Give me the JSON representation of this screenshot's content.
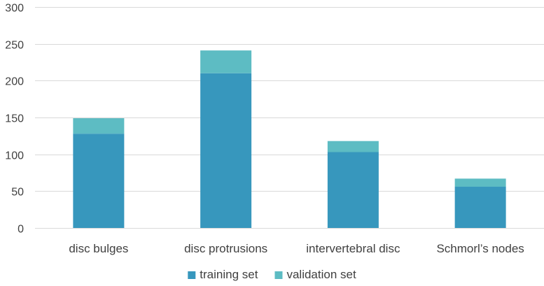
{
  "chart_data": {
    "type": "bar",
    "stacked": true,
    "categories": [
      "disc bulges",
      "disc protrusions",
      "intervertebral disc",
      "Schmorl’s nodes"
    ],
    "series": [
      {
        "name": "training set",
        "values": [
          128,
          210,
          103,
          56
        ],
        "color": "#3797BD"
      },
      {
        "name": "validation set",
        "values": [
          21,
          31,
          15,
          11
        ],
        "color": "#5DBCC3"
      }
    ],
    "ylim": [
      0,
      300
    ],
    "yticks": [
      "0",
      "50",
      "100",
      "150",
      "200",
      "250",
      "300"
    ],
    "grid": true,
    "legend": "bottom"
  }
}
